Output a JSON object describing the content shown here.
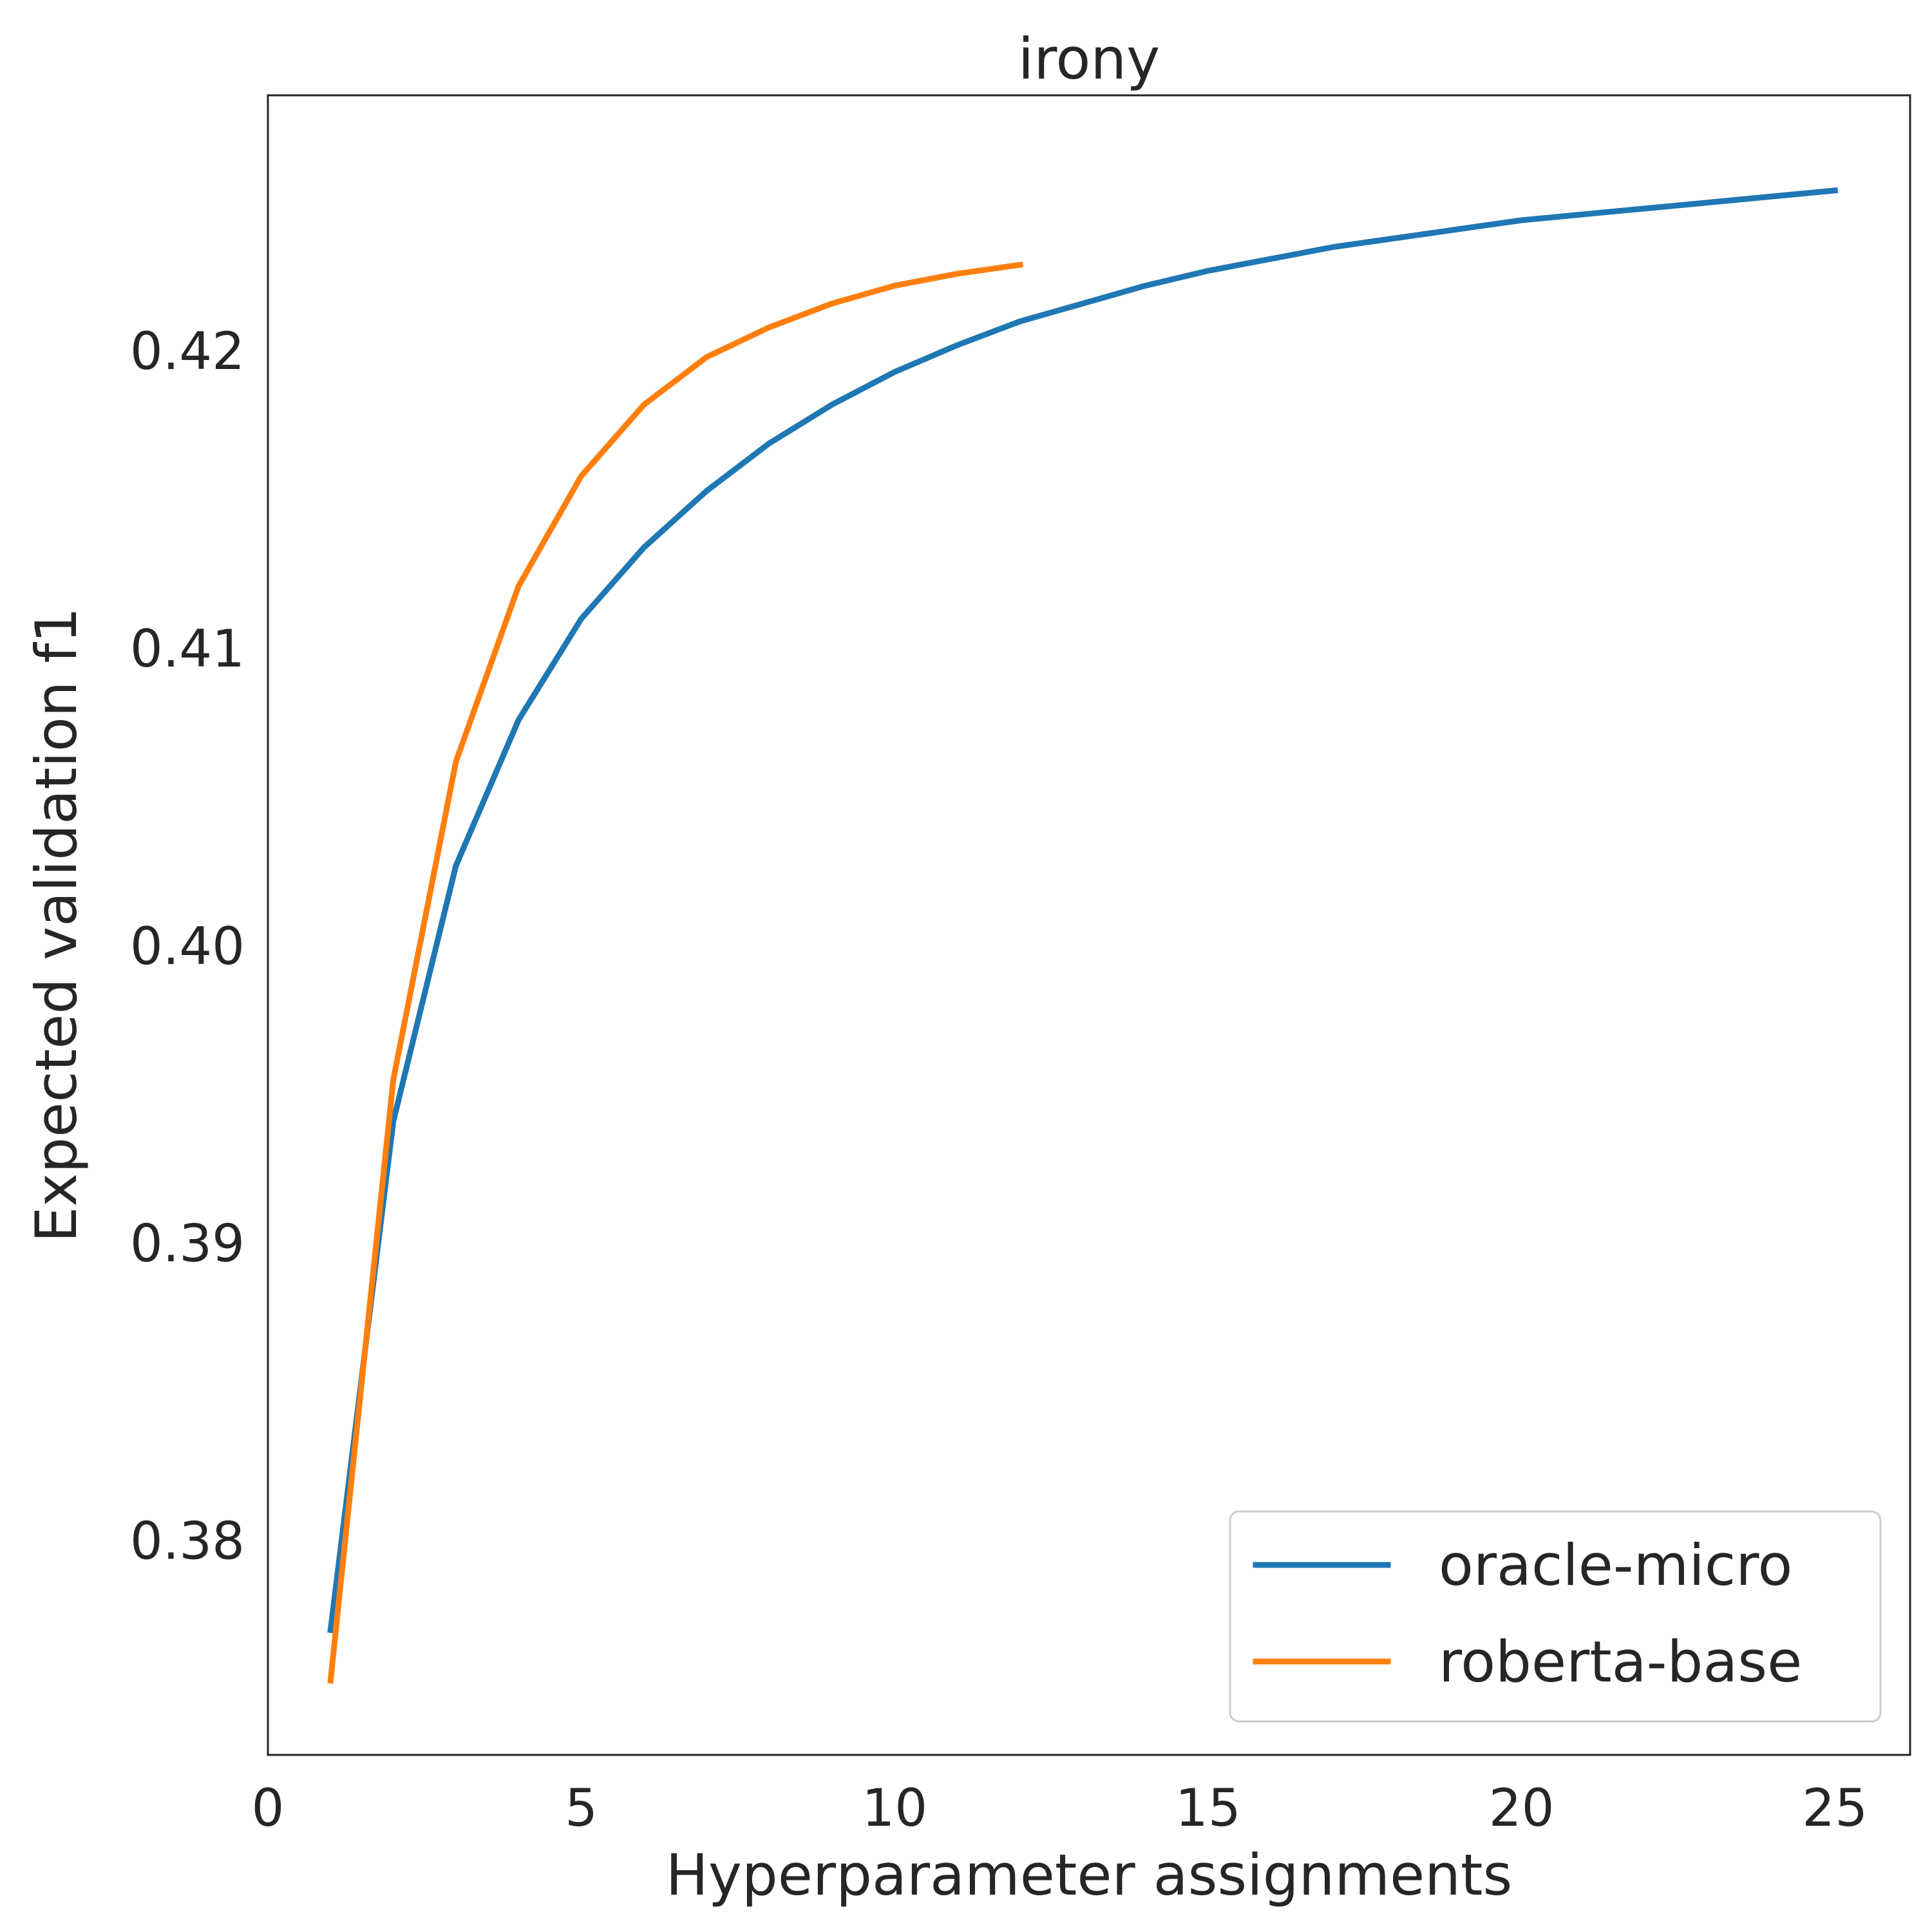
{
  "chart_data": {
    "type": "line",
    "title": "irony",
    "xlabel": "Hyperparameter assignments",
    "ylabel": "Expected validation f1",
    "xlim": [
      0,
      26.2
    ],
    "ylim": [
      0.3728,
      0.4286
    ],
    "xticks": [
      0,
      5,
      10,
      15,
      20,
      25
    ],
    "xtick_labels": [
      "0",
      "5",
      "10",
      "15",
      "20",
      "25"
    ],
    "yticks": [
      0.38,
      0.39,
      0.4,
      0.41,
      0.42
    ],
    "ytick_labels": [
      "0.38",
      "0.39",
      "0.40",
      "0.41",
      "0.42"
    ],
    "grid": false,
    "legend_position": "lower-right",
    "series": [
      {
        "name": "oracle-micro",
        "color": "#1f77b4",
        "x": [
          1,
          2,
          3,
          4,
          5,
          6,
          7,
          8,
          9,
          10,
          11,
          12,
          13,
          14,
          15,
          16,
          17,
          18,
          19,
          20,
          21,
          22,
          23,
          24,
          25
        ],
        "values": [
          0.377,
          0.3941,
          0.4027,
          0.4076,
          0.411,
          0.4134,
          0.4153,
          0.4169,
          0.4182,
          0.4193,
          0.4202,
          0.421,
          0.4216,
          0.4222,
          0.4227,
          0.4231,
          0.4235,
          0.4238,
          0.4241,
          0.4244,
          0.4246,
          0.4248,
          0.425,
          0.4252,
          0.4254
        ]
      },
      {
        "name": "roberta-base",
        "color": "#ff7f0e",
        "x": [
          1,
          2,
          3,
          4,
          5,
          6,
          7,
          8,
          9,
          10,
          11,
          12
        ],
        "values": [
          0.3753,
          0.3955,
          0.4062,
          0.4121,
          0.4158,
          0.4182,
          0.4198,
          0.4208,
          0.4216,
          0.4222,
          0.4226,
          0.4229
        ]
      }
    ]
  }
}
